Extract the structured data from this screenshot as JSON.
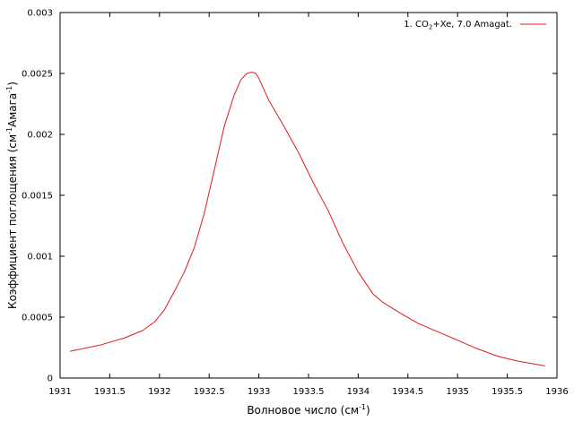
{
  "chart_data": {
    "type": "line",
    "title": "",
    "xlabel": {
      "main": "Волновое число (см",
      "sup": "-1",
      "end": ")"
    },
    "ylabel": {
      "p1": "Коэффициент поглощения (см",
      "s1": "-1",
      "p2": "Амага",
      "s2": "-1",
      "p3": ")"
    },
    "xlim": [
      1931,
      1936
    ],
    "ylim": [
      0,
      0.003
    ],
    "x_ticks": [
      "1931",
      "1931.5",
      "1932",
      "1932.5",
      "1933",
      "1933.5",
      "1934",
      "1934.5",
      "1935",
      "1935.5",
      "1936"
    ],
    "y_ticks": [
      "0",
      "0.0005",
      "0.001",
      "0.0015",
      "0.002",
      "0.0025",
      "0.003"
    ],
    "grid": false,
    "legend_position": "top-right",
    "series": [
      {
        "legend": {
          "prefix": "1. CO",
          "sub": "2",
          "suffix": "+Xe, 7.0 Amagat."
        },
        "color": "#e41a1c",
        "x": [
          1931.1,
          1931.4,
          1931.65,
          1931.83,
          1931.95,
          1932.05,
          1932.15,
          1932.25,
          1932.35,
          1932.45,
          1932.55,
          1932.65,
          1932.75,
          1932.82,
          1932.88,
          1932.93,
          1932.97,
          1933.0,
          1933.1,
          1933.25,
          1933.4,
          1933.55,
          1933.7,
          1933.85,
          1934.0,
          1934.15,
          1934.25,
          1934.45,
          1934.6,
          1934.8,
          1935.0,
          1935.2,
          1935.4,
          1935.6,
          1935.88
        ],
        "y": [
          0.00022,
          0.00027,
          0.00033,
          0.00039,
          0.00046,
          0.00056,
          0.00071,
          0.00087,
          0.00107,
          0.00135,
          0.0017,
          0.00206,
          0.00232,
          0.00245,
          0.0025,
          0.00251,
          0.0025,
          0.00246,
          0.00228,
          0.00207,
          0.00185,
          0.0016,
          0.00137,
          0.0011,
          0.00087,
          0.00069,
          0.00062,
          0.00052,
          0.00045,
          0.00038,
          0.00031,
          0.00024,
          0.00018,
          0.00014,
          0.0001
        ]
      }
    ]
  }
}
